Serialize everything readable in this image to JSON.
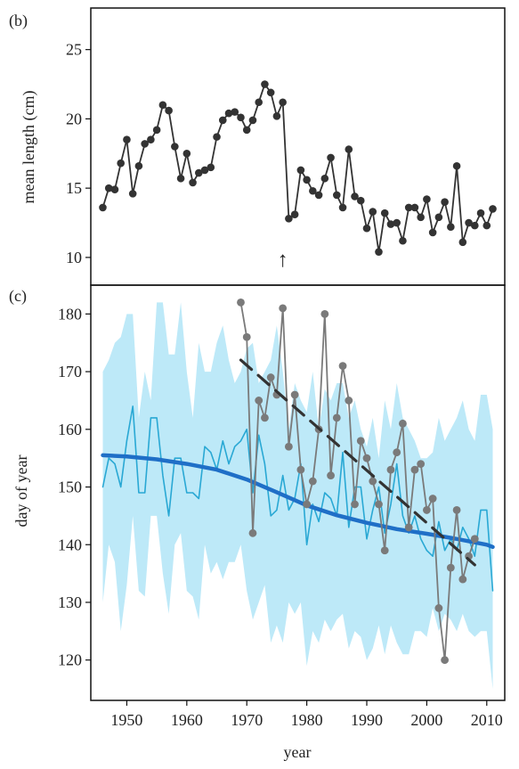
{
  "chart_data": [
    {
      "panel_label": "(b)",
      "type": "line",
      "ylabel": "mean length (cm)",
      "yticks": [
        10,
        15,
        20,
        25
      ],
      "ylim": [
        8,
        28
      ],
      "xlim": [
        1944,
        2013
      ],
      "annotation": "↑",
      "annotation_x": 1976,
      "series": [
        {
          "color": "#333333",
          "x": [
            1946,
            1947,
            1948,
            1949,
            1950,
            1951,
            1952,
            1953,
            1954,
            1955,
            1956,
            1957,
            1958,
            1959,
            1960,
            1961,
            1962,
            1963,
            1964,
            1965,
            1966,
            1967,
            1968,
            1969,
            1970,
            1971,
            1972,
            1973,
            1974,
            1975,
            1976,
            1977,
            1978,
            1979,
            1980,
            1981,
            1982,
            1983,
            1984,
            1985,
            1986,
            1987,
            1988,
            1989,
            1990,
            1991,
            1992,
            1993,
            1994,
            1995,
            1996,
            1997,
            1998,
            1999,
            2000,
            2001,
            2002,
            2003,
            2004,
            2005,
            2006,
            2007,
            2008,
            2009,
            2010,
            2011
          ],
          "y": [
            13.6,
            15.0,
            14.9,
            16.8,
            18.5,
            14.6,
            16.6,
            18.2,
            18.5,
            19.2,
            21.0,
            20.6,
            18.0,
            15.7,
            17.5,
            15.4,
            16.1,
            16.3,
            16.5,
            18.7,
            19.9,
            20.4,
            20.5,
            20.1,
            19.2,
            19.9,
            21.2,
            22.5,
            21.9,
            20.2,
            21.2,
            12.8,
            13.1,
            16.3,
            15.6,
            14.8,
            14.5,
            15.7,
            17.2,
            14.5,
            13.6,
            17.8,
            14.4,
            14.1,
            12.1,
            13.3,
            10.4,
            13.2,
            12.4,
            12.5,
            11.2,
            13.6,
            13.6,
            12.9,
            14.2,
            11.8,
            12.9,
            14.0,
            12.2,
            16.6,
            11.1,
            12.5,
            12.3,
            13.2,
            12.3,
            13.5
          ]
        }
      ]
    },
    {
      "panel_label": "(c)",
      "type": "line",
      "xlabel": "year",
      "ylabel": "day of year",
      "xticks": [
        1950,
        1960,
        1970,
        1980,
        1990,
        2000,
        2010
      ],
      "yticks": [
        120,
        130,
        140,
        150,
        160,
        170,
        180
      ],
      "ylim": [
        113,
        185
      ],
      "xlim": [
        1944,
        2013
      ],
      "band": {
        "color": "#bde9f8",
        "x": [
          1946,
          1947,
          1948,
          1949,
          1950,
          1951,
          1952,
          1953,
          1954,
          1955,
          1956,
          1957,
          1958,
          1959,
          1960,
          1961,
          1962,
          1963,
          1964,
          1965,
          1966,
          1967,
          1968,
          1969,
          1970,
          1971,
          1972,
          1973,
          1974,
          1975,
          1976,
          1977,
          1978,
          1979,
          1980,
          1981,
          1982,
          1983,
          1984,
          1985,
          1986,
          1987,
          1988,
          1989,
          1990,
          1991,
          1992,
          1993,
          1994,
          1995,
          1996,
          1997,
          1998,
          1999,
          2000,
          2001,
          2002,
          2003,
          2004,
          2005,
          2006,
          2007,
          2008,
          2009,
          2010,
          2011
        ],
        "upper": [
          170,
          172,
          175,
          176,
          180,
          180,
          162,
          170,
          165,
          182,
          182,
          173,
          173,
          182,
          170,
          162,
          175,
          170,
          170,
          175,
          178,
          172,
          168,
          170,
          174,
          175,
          168,
          170,
          172,
          178,
          170,
          160,
          168,
          165,
          163,
          170,
          160,
          167,
          165,
          168,
          168,
          162,
          165,
          160,
          157,
          162,
          155,
          165,
          160,
          168,
          162,
          160,
          158,
          155,
          155,
          156,
          162,
          158,
          160,
          162,
          165,
          160,
          158,
          166,
          166,
          160
        ],
        "lower": [
          130,
          140,
          137,
          125,
          133,
          145,
          132,
          131,
          145,
          145,
          135,
          128,
          140,
          142,
          132,
          131,
          127,
          140,
          135,
          137,
          134,
          137,
          137,
          140,
          132,
          127,
          130,
          133,
          123,
          126,
          123,
          130,
          128,
          130,
          119,
          125,
          123,
          127,
          125,
          127,
          128,
          122,
          125,
          124,
          120,
          122,
          126,
          121,
          126,
          123,
          121,
          121,
          125,
          125,
          124,
          129,
          125,
          128,
          127,
          125,
          128,
          125,
          124,
          125,
          125,
          115
        ]
      },
      "series": [
        {
          "name": "",
          "color": "#29a8d4",
          "x": [
            1946,
            1947,
            1948,
            1949,
            1950,
            1951,
            1952,
            1953,
            1954,
            1955,
            1956,
            1957,
            1958,
            1959,
            1960,
            1961,
            1962,
            1963,
            1964,
            1965,
            1966,
            1967,
            1968,
            1969,
            1970,
            1971,
            1972,
            1973,
            1974,
            1975,
            1976,
            1977,
            1978,
            1979,
            1980,
            1981,
            1982,
            1983,
            1984,
            1985,
            1986,
            1987,
            1988,
            1989,
            1990,
            1991,
            1992,
            1993,
            1994,
            1995,
            1996,
            1997,
            1998,
            1999,
            2000,
            2001,
            2002,
            2003,
            2004,
            2005,
            2006,
            2007,
            2008,
            2009,
            2010,
            2011
          ],
          "y": [
            150,
            155,
            154,
            150,
            158,
            164,
            149,
            149,
            162,
            162,
            152,
            145,
            155,
            155,
            149,
            149,
            148,
            157,
            156,
            153,
            158,
            154,
            157,
            158,
            160,
            149,
            159,
            154,
            145,
            146,
            152,
            146,
            148,
            154,
            140,
            147,
            144,
            149,
            148,
            145,
            156,
            143,
            150,
            150,
            141,
            146,
            150,
            142,
            147,
            154,
            145,
            142,
            145,
            141,
            139,
            138,
            144,
            139,
            141,
            139,
            143,
            141,
            138,
            146,
            146,
            132
          ]
        },
        {
          "name": "",
          "color": "#1f6fc7",
          "x": [
            1946,
            1950,
            1955,
            1960,
            1965,
            1970,
            1975,
            1980,
            1985,
            1990,
            1995,
            2000,
            2005,
            2010,
            2011
          ],
          "y": [
            155.5,
            155.3,
            154.8,
            154.0,
            153.0,
            151.3,
            149.1,
            146.8,
            145.1,
            143.8,
            142.7,
            141.9,
            141.0,
            140.0,
            139.6
          ]
        },
        {
          "name": "",
          "color": "#7a7a7a",
          "x": [
            1969,
            1970,
            1971,
            1972,
            1973,
            1974,
            1975,
            1976,
            1977,
            1978,
            1979,
            1980,
            1981,
            1982,
            1983,
            1984,
            1985,
            1986,
            1987,
            1988,
            1989,
            1990,
            1991,
            1992,
            1993,
            1994,
            1995,
            1996,
            1997,
            1998,
            1999,
            2000,
            2001,
            2002,
            2003,
            2004,
            2005,
            2006,
            2007,
            2008
          ],
          "y": [
            182,
            176,
            142,
            165,
            162,
            169,
            166,
            181,
            157,
            166,
            153,
            147,
            151,
            160,
            180,
            152,
            162,
            171,
            165,
            147,
            158,
            155,
            151,
            147,
            139,
            153,
            156,
            161,
            143,
            153,
            154,
            146,
            148,
            129,
            120,
            136,
            146,
            134,
            138,
            141
          ]
        },
        {
          "name": "",
          "color": "#333333",
          "dashed": true,
          "x": [
            1969,
            2008
          ],
          "y": [
            172,
            136.5
          ]
        }
      ]
    }
  ]
}
